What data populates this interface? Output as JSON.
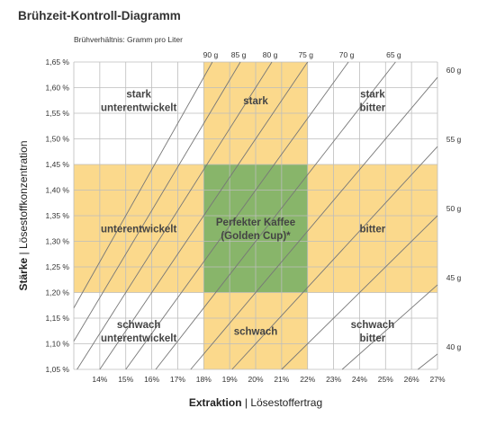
{
  "title": "Brühzeit-Kontroll-Diagramm",
  "colors": {
    "light": "#fbd98c",
    "ideal": "#88b56a",
    "grid": "#bdbdbd",
    "diagonal": "#777777"
  },
  "chart_data": {
    "type": "area",
    "title": "Brühzeit-Kontroll-Diagramm",
    "xlabel_bold": "Extraktion",
    "xlabel_rest": " | Lösestoffertrag",
    "ylabel_bold": "Stärke",
    "ylabel_rest": " | Lösestoffkonzentration",
    "ratio_label": "Brühverhältnis: Gramm pro Liter",
    "xlim": [
      13,
      27
    ],
    "ylim": [
      1.05,
      1.65
    ],
    "x_ticks": [
      "14%",
      "15%",
      "16%",
      "17%",
      "18%",
      "19%",
      "20%",
      "21%",
      "22%",
      "23%",
      "24%",
      "25%",
      "26%",
      "27%"
    ],
    "y_ticks": [
      "1,05 %",
      "1,10 %",
      "1,15 %",
      "1,20 %",
      "1,25 %",
      "1,30 %",
      "1,35 %",
      "1,40 %",
      "1,45 %",
      "1,50 %",
      "1,55 %",
      "1,60 %",
      "1,65 %"
    ],
    "ideal_extraction": [
      18,
      22
    ],
    "ideal_strength": [
      1.2,
      1.45
    ],
    "brew_ratios": [
      {
        "label": "90 g",
        "grams": 90
      },
      {
        "label": "85 g",
        "grams": 85
      },
      {
        "label": "80 g",
        "grams": 80
      },
      {
        "label": "75 g",
        "grams": 75
      },
      {
        "label": "70 g",
        "grams": 70
      },
      {
        "label": "65 g",
        "grams": 65
      },
      {
        "label": "60 g",
        "grams": 60
      },
      {
        "label": "55 g",
        "grams": 55
      },
      {
        "label": "50 g",
        "grams": 50
      },
      {
        "label": "45 g",
        "grams": 45
      },
      {
        "label": "40 g",
        "grams": 40
      }
    ],
    "regions": [
      {
        "lines": [
          "stark",
          "unterentwickelt"
        ],
        "x": 15.5,
        "y": 1.575
      },
      {
        "lines": [
          "stark"
        ],
        "x": 20,
        "y": 1.575
      },
      {
        "lines": [
          "stark",
          "bitter"
        ],
        "x": 24.5,
        "y": 1.575
      },
      {
        "lines": [
          "unterentwickelt"
        ],
        "x": 15.5,
        "y": 1.325
      },
      {
        "lines": [
          "Perfekter Kaffee",
          "(Golden Cup)*"
        ],
        "x": 20,
        "y": 1.325
      },
      {
        "lines": [
          "bitter"
        ],
        "x": 24.5,
        "y": 1.325
      },
      {
        "lines": [
          "schwach",
          "unterentwickelt"
        ],
        "x": 15.5,
        "y": 1.125
      },
      {
        "lines": [
          "schwach"
        ],
        "x": 20,
        "y": 1.125
      },
      {
        "lines": [
          "schwach",
          "bitter"
        ],
        "x": 24.5,
        "y": 1.125
      }
    ]
  }
}
